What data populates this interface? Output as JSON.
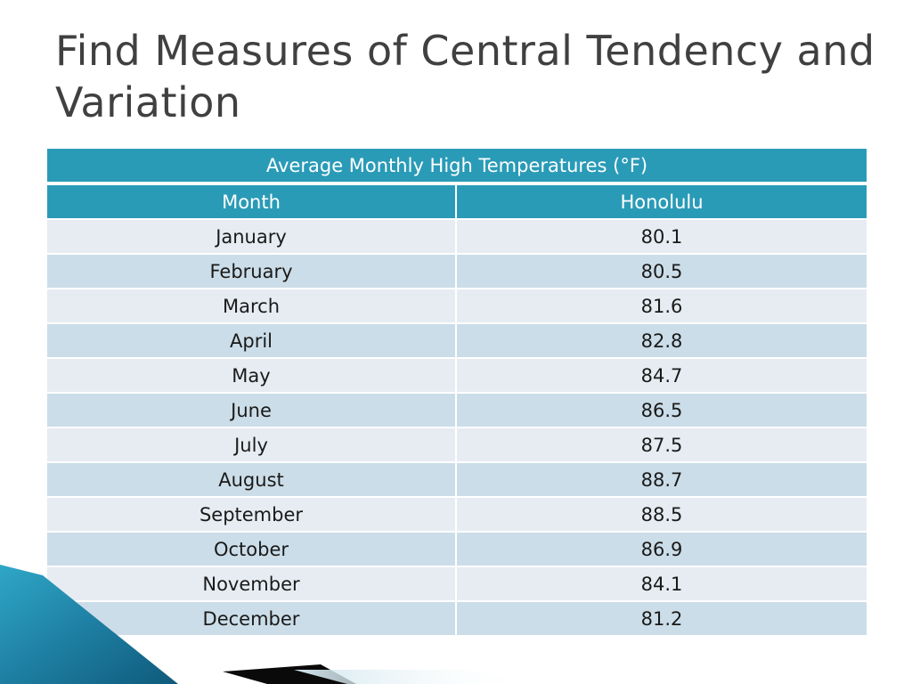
{
  "slide": {
    "title": "Find Measures of Central Tendency and Variation"
  },
  "table": {
    "caption": "Average Monthly High Temperatures (°F)",
    "headers": [
      "Month",
      "Honolulu"
    ],
    "rows": [
      [
        "January",
        "80.1"
      ],
      [
        "February",
        "80.5"
      ],
      [
        "March",
        "81.6"
      ],
      [
        "April",
        "82.8"
      ],
      [
        "May",
        "84.7"
      ],
      [
        "June",
        "86.5"
      ],
      [
        "July",
        "87.5"
      ],
      [
        "August",
        "88.7"
      ],
      [
        "September",
        "88.5"
      ],
      [
        "October",
        "86.9"
      ],
      [
        "November",
        "84.1"
      ],
      [
        "December",
        "81.2"
      ]
    ]
  },
  "colors": {
    "header": "#2a9bb7",
    "row_light": "#e6ecf2",
    "row_dark": "#cbdde8",
    "title": "#404040",
    "accent_blue": "#1e7fa3",
    "accent_black": "#0a0a0a"
  }
}
